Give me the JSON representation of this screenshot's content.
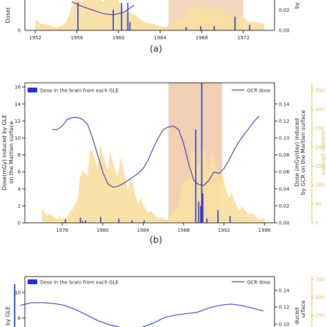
{
  "colors": {
    "sunspot_fill": "#f8dfa0",
    "sunspot_axis": "#f0b44a",
    "shade": "#d87c26",
    "gle_bar": "#1f2fcf",
    "gcr_line": "#3b3bb0",
    "axis": "#222222"
  },
  "panel_labels": [
    "(a)",
    "(b)"
  ],
  "chart_data": [
    {
      "id": "a",
      "type": "bar",
      "visible": "bottom part only",
      "x_ticks": [
        "1952",
        "1956",
        "1960",
        "1964",
        "1968",
        "1972"
      ],
      "xlim": [
        1951,
        1975
      ],
      "left_ylabel_fragment": "Dose(",
      "left_ticks": [
        "0"
      ],
      "right_ticks": [
        "0.02",
        "0.00"
      ],
      "right_ylabel_fragment": "by",
      "gle_events": [
        {
          "x": 1956.1,
          "y": 2.0
        },
        {
          "x": 1959.5,
          "y": 1.5
        },
        {
          "x": 1960.3,
          "y": 2.0
        },
        {
          "x": 1960.9,
          "y": 2.0
        },
        {
          "x": 1961.1,
          "y": 0.6
        },
        {
          "x": 1966.5,
          "y": 0.25
        },
        {
          "x": 1967.9,
          "y": 0.3
        },
        {
          "x": 1969.2,
          "y": 0.3
        },
        {
          "x": 1971.2,
          "y": 1.0
        },
        {
          "x": 1972.6,
          "y": 0.4
        }
      ],
      "gcr_dose": {
        "x": [
          1955.5,
          1956.5,
          1957.5,
          1958.5,
          1959.5,
          1960.5,
          1961.5
        ],
        "y": [
          0.048,
          0.04,
          0.034,
          0.028,
          0.026,
          0.03,
          0.042
        ]
      },
      "sunspot": {
        "x": [
          1952,
          1953,
          1954,
          1955,
          1956,
          1957,
          1958,
          1959,
          1960,
          1961,
          1962,
          1963,
          1964,
          1965,
          1966,
          1967,
          1968,
          1969,
          1970,
          1971,
          1972,
          1973,
          1974
        ],
        "y": [
          0.018,
          0.01,
          0.004,
          0.014,
          0.055,
          0.06,
          0.06,
          0.058,
          0.05,
          0.03,
          0.02,
          0.012,
          0.006,
          0.008,
          0.02,
          0.036,
          0.038,
          0.036,
          0.034,
          0.026,
          0.022,
          0.014,
          0.01
        ]
      },
      "shaded_range": [
        1964.8,
        1972.0
      ]
    },
    {
      "id": "b",
      "type": "bar",
      "title": "",
      "legend": {
        "gle": "Dose in the brain from each GLE",
        "gcr": "GCR dose"
      },
      "x_ticks": [
        "1976",
        "1980",
        "1984",
        "1988",
        "1992",
        "1996"
      ],
      "xlim": [
        1972.3,
        1997.0
      ],
      "left_ylabel_line1": "Dose(mGy) induced by GLE",
      "left_ylabel_line2": "on the Martian surface",
      "left_ylim": [
        0,
        16.5
      ],
      "left_ticks": [
        "0",
        "2",
        "4",
        "6",
        "8",
        "10",
        "12",
        "14",
        "16"
      ],
      "right_ylabel_line1": "Dose (mGy/day) induced",
      "right_ylabel_line2": "by GCR on the Martian surface",
      "right_ylim": [
        0,
        0.165
      ],
      "right_ticks": [
        "0.00",
        "0.02",
        "0.04",
        "0.06",
        "0.08",
        "0.10",
        "0.12",
        "0.14"
      ],
      "sunspot_label": "sunsopt number",
      "sunspot_ylim": [
        0,
        370
      ],
      "sunspot_ticks": [
        "0",
        "50",
        "100",
        "150",
        "200",
        "250",
        "300",
        "350"
      ],
      "gle_events": [
        {
          "x": 1976.3,
          "y": 0.4
        },
        {
          "x": 1977.8,
          "y": 0.6
        },
        {
          "x": 1978.0,
          "y": 0.2
        },
        {
          "x": 1978.3,
          "y": 0.3
        },
        {
          "x": 1979.8,
          "y": 0.7
        },
        {
          "x": 1981.6,
          "y": 0.5
        },
        {
          "x": 1982.9,
          "y": 0.3
        },
        {
          "x": 1984.1,
          "y": 0.3
        },
        {
          "x": 1989.2,
          "y": 11.0
        },
        {
          "x": 1989.5,
          "y": 2.5
        },
        {
          "x": 1989.7,
          "y": 2.0
        },
        {
          "x": 1989.8,
          "y": 16.5
        },
        {
          "x": 1989.9,
          "y": 3.5
        },
        {
          "x": 1990.3,
          "y": 0.5
        },
        {
          "x": 1991.4,
          "y": 1.5
        },
        {
          "x": 1992.6,
          "y": 0.8
        }
      ],
      "gcr_dose": {
        "x": [
          1975.0,
          1975.5,
          1976.0,
          1976.5,
          1977.0,
          1977.5,
          1978.0,
          1978.5,
          1979.0,
          1979.5,
          1980.0,
          1980.5,
          1981.0,
          1981.5,
          1982.0,
          1982.5,
          1983.0,
          1983.5,
          1984.0,
          1984.5,
          1985.0,
          1985.5,
          1986.0,
          1986.5,
          1987.0,
          1987.5,
          1988.0,
          1988.5,
          1989.0,
          1989.5,
          1990.0,
          1990.5,
          1991.0,
          1991.5,
          1992.0,
          1992.5,
          1993.0,
          1993.5,
          1994.0,
          1994.5,
          1995.0,
          1995.5
        ],
        "y": [
          0.11,
          0.11,
          0.114,
          0.122,
          0.124,
          0.124,
          0.122,
          0.116,
          0.1,
          0.08,
          0.06,
          0.046,
          0.042,
          0.043,
          0.046,
          0.05,
          0.054,
          0.058,
          0.064,
          0.074,
          0.088,
          0.1,
          0.11,
          0.113,
          0.114,
          0.11,
          0.094,
          0.07,
          0.05,
          0.045,
          0.044,
          0.05,
          0.06,
          0.058,
          0.064,
          0.074,
          0.086,
          0.096,
          0.104,
          0.112,
          0.12,
          0.126
        ]
      },
      "sunspot": {
        "x": [
          1974.0,
          1974.5,
          1975.0,
          1975.5,
          1976.0,
          1976.5,
          1977.0,
          1977.5,
          1978.0,
          1978.5,
          1979.0,
          1979.5,
          1980.0,
          1980.5,
          1981.0,
          1981.5,
          1982.0,
          1982.5,
          1983.0,
          1983.5,
          1984.0,
          1984.5,
          1985.0,
          1985.5,
          1986.0,
          1986.5,
          1987.0,
          1987.5,
          1988.0,
          1988.5,
          1989.0,
          1989.5,
          1990.0,
          1990.5,
          1991.0,
          1991.5,
          1992.0,
          1992.5,
          1993.0,
          1993.5,
          1994.0,
          1994.5,
          1995.0,
          1995.5,
          1996.0
        ],
        "y": [
          40,
          25,
          18,
          15,
          12,
          20,
          35,
          80,
          140,
          170,
          190,
          200,
          185,
          190,
          160,
          170,
          150,
          120,
          100,
          70,
          50,
          35,
          25,
          15,
          10,
          12,
          30,
          60,
          110,
          150,
          190,
          200,
          190,
          180,
          170,
          160,
          110,
          90,
          60,
          45,
          35,
          30,
          20,
          12,
          10
        ]
      },
      "shaded_range": [
        1986.5,
        1991.8
      ]
    },
    {
      "id": "c",
      "type": "bar",
      "visible": "top part only",
      "legend": {
        "gle": "Dose in the brain from each GLE",
        "gcr": "GCR dose"
      },
      "left_ylabel_fragment": "by GLE",
      "left_ticks": [
        "10",
        "8"
      ],
      "right_ticks": [
        "0.14",
        "0.12",
        "0.10"
      ],
      "right_ylabel_fragment": "duced",
      "right_ylabel_fragment2": "urface",
      "sunspot_ticks": [
        "350",
        "300",
        "250"
      ],
      "gle_events": [
        {
          "x": 1998.8,
          "y": 10.5
        }
      ],
      "gcr_dose": {
        "x": [
          1996.0,
          1996.5,
          1997.0,
          1997.5,
          1998.0,
          1998.5,
          1999.0,
          1999.5,
          2000.0,
          2000.5,
          2001.0,
          2001.5,
          2002.0,
          2002.5,
          2003.0,
          2003.5,
          2004.0,
          2004.5,
          2005.0,
          2005.5,
          2006.0,
          2006.5,
          2007.0
        ],
        "y": [
          0.118,
          0.122,
          0.122,
          0.121,
          0.118,
          0.112,
          0.104,
          0.096,
          0.09,
          0.086,
          0.084,
          0.086,
          0.092,
          0.1,
          0.104,
          0.106,
          0.108,
          0.114,
          0.118,
          0.12,
          0.118,
          0.114,
          0.11
        ]
      }
    }
  ]
}
